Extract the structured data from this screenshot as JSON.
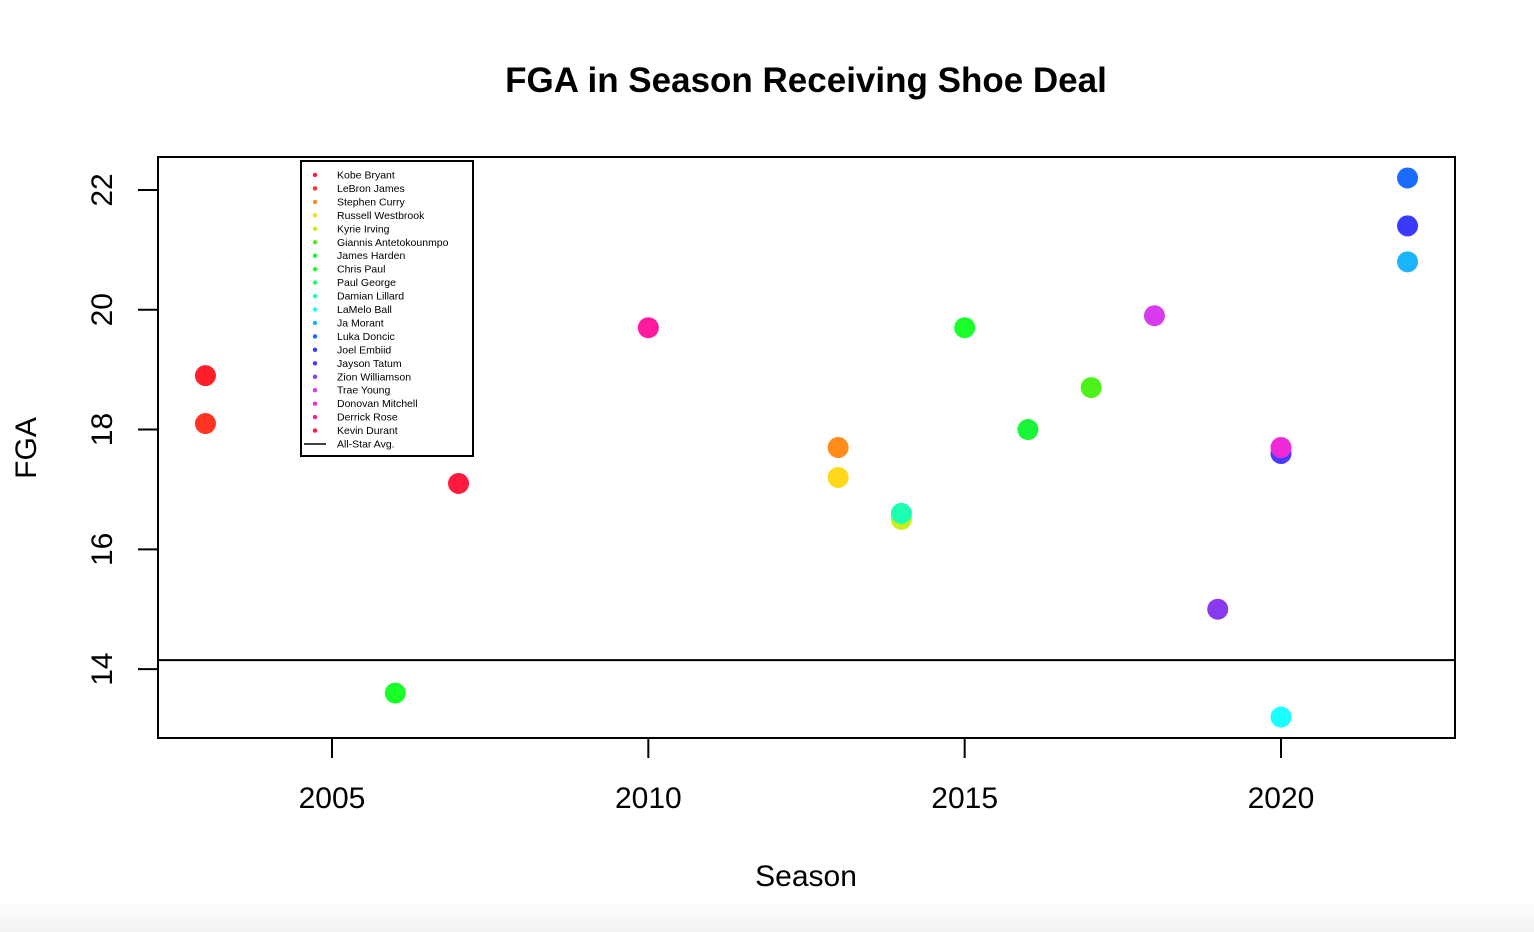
{
  "chart_data": {
    "type": "scatter",
    "title": "FGA in Season Receiving Shoe Deal",
    "xlabel": "Season",
    "ylabel": "FGA",
    "xlim": [
      2002.25,
      2022.75
    ],
    "ylim": [
      12.85,
      22.55
    ],
    "xticks": [
      2005,
      2010,
      2015,
      2020
    ],
    "yticks": [
      14,
      16,
      18,
      20,
      22
    ],
    "grid": false,
    "legend_position": "top-left",
    "reference_line": {
      "label": "All-Star Avg.",
      "y": 14.15
    },
    "series": [
      {
        "name": "Kobe Bryant",
        "color": "#ff1f2b",
        "points": [
          [
            2003,
            18.9
          ]
        ]
      },
      {
        "name": "LeBron James",
        "color": "#ff3322",
        "points": [
          [
            2003,
            18.1
          ]
        ]
      },
      {
        "name": "Stephen Curry",
        "color": "#ff8c1a",
        "points": [
          [
            2013,
            17.7
          ]
        ]
      },
      {
        "name": "Russell Westbrook",
        "color": "#ffd81a",
        "points": [
          [
            2013,
            17.2
          ]
        ]
      },
      {
        "name": "Kyrie Irving",
        "color": "#c9ee1a",
        "points": [
          [
            2014,
            16.5
          ]
        ]
      },
      {
        "name": "Giannis Antetokounmpo",
        "color": "#4cf21a",
        "points": [
          [
            2017,
            18.7
          ]
        ]
      },
      {
        "name": "James Harden",
        "color": "#1af53a",
        "points": [
          [
            2016,
            18.0
          ]
        ]
      },
      {
        "name": "Chris Paul",
        "color": "#1aff2a",
        "points": [
          [
            2006,
            13.6
          ],
          [
            2015,
            19.7
          ]
        ]
      },
      {
        "name": "Paul George",
        "color": "#1aff6a",
        "points": []
      },
      {
        "name": "Damian Lillard",
        "color": "#1affb0",
        "points": [
          [
            2014,
            16.6
          ]
        ]
      },
      {
        "name": "LaMelo Ball",
        "color": "#1affff",
        "points": [
          [
            2020,
            13.2
          ]
        ]
      },
      {
        "name": "Ja Morant",
        "color": "#1ab4ff",
        "points": [
          [
            2022,
            20.8
          ]
        ]
      },
      {
        "name": "Luka Doncic",
        "color": "#1a6cff",
        "points": [
          [
            2022,
            22.2
          ]
        ]
      },
      {
        "name": "Joel Embiid",
        "color": "#3a3aff",
        "points": [
          [
            2022,
            21.4
          ]
        ]
      },
      {
        "name": "Jayson Tatum",
        "color": "#4a3aff",
        "points": [
          [
            2020,
            17.6
          ]
        ]
      },
      {
        "name": "Zion Williamson",
        "color": "#8a3aee",
        "points": [
          [
            2019,
            15.0
          ]
        ]
      },
      {
        "name": "Trae Young",
        "color": "#d83aee",
        "points": [
          [
            2018,
            19.9
          ]
        ]
      },
      {
        "name": "Donovan Mitchell",
        "color": "#ee2ad8",
        "points": [
          [
            2020,
            17.7
          ]
        ]
      },
      {
        "name": "Derrick Rose",
        "color": "#ff1aa0",
        "points": [
          [
            2010,
            19.7
          ]
        ]
      },
      {
        "name": "Kevin Durant",
        "color": "#ff1a40",
        "points": [
          [
            2007,
            17.1
          ]
        ]
      }
    ]
  }
}
